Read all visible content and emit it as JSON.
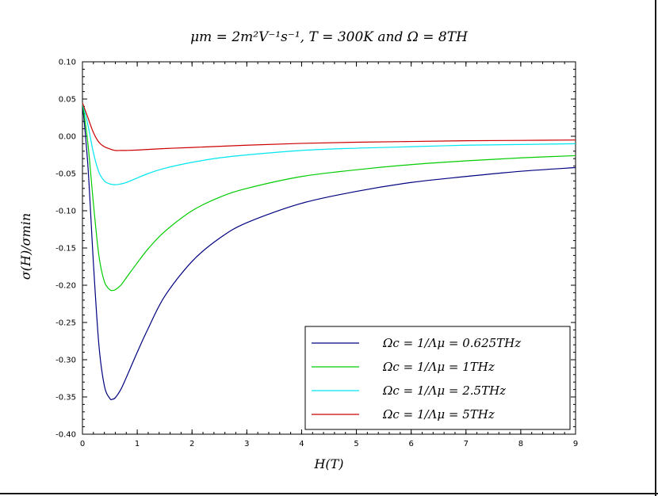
{
  "chart_data": {
    "type": "line",
    "title": "μm = 2m²V⁻¹s⁻¹, T = 300K and Ω = 8TH",
    "xlabel": "H(T)",
    "ylabel": "σ(H)/σmin",
    "xlim": [
      0,
      9
    ],
    "ylim": [
      -0.4,
      0.1
    ],
    "x_ticks": [
      "0",
      "1",
      "2",
      "3",
      "4",
      "5",
      "6",
      "7",
      "8",
      "9"
    ],
    "y_ticks": [
      "0.10",
      "0.05",
      "0.00",
      "-0.05",
      "-0.10",
      "-0.15",
      "-0.20",
      "-0.25",
      "-0.30",
      "-0.35",
      "-0.40"
    ],
    "grid": false,
    "legend_position": "bottom-right",
    "series": [
      {
        "name": "Ωc = 1/Λμ = 0.625THz",
        "color": "#000080",
        "x": [
          0,
          0.1,
          0.2,
          0.3,
          0.4,
          0.5,
          0.55,
          0.6,
          0.7,
          0.8,
          1.0,
          1.2,
          1.5,
          2.0,
          2.5,
          3.0,
          4.0,
          5.0,
          6.0,
          7.0,
          8.0,
          9.0
        ],
        "y": [
          0.045,
          -0.04,
          -0.17,
          -0.28,
          -0.335,
          -0.352,
          -0.353,
          -0.351,
          -0.34,
          -0.324,
          -0.29,
          -0.258,
          -0.215,
          -0.168,
          -0.137,
          -0.116,
          -0.09,
          -0.074,
          -0.062,
          -0.054,
          -0.047,
          -0.042
        ]
      },
      {
        "name": "Ωc = 1/Λμ = 1THz",
        "color": "#00cc00",
        "x": [
          0,
          0.1,
          0.2,
          0.3,
          0.4,
          0.5,
          0.55,
          0.6,
          0.7,
          0.8,
          1.0,
          1.2,
          1.5,
          2.0,
          2.5,
          3.0,
          4.0,
          5.0,
          6.0,
          7.0,
          8.0,
          9.0
        ],
        "y": [
          0.045,
          -0.01,
          -0.09,
          -0.16,
          -0.195,
          -0.206,
          -0.207,
          -0.206,
          -0.2,
          -0.19,
          -0.17,
          -0.151,
          -0.128,
          -0.1,
          -0.082,
          -0.07,
          -0.054,
          -0.045,
          -0.038,
          -0.033,
          -0.029,
          -0.026
        ]
      },
      {
        "name": "Ωc = 1/Λμ = 2.5THz",
        "color": "#00e5ee",
        "x": [
          0,
          0.1,
          0.2,
          0.3,
          0.4,
          0.5,
          0.6,
          0.7,
          0.8,
          1.0,
          1.2,
          1.5,
          2.0,
          2.5,
          3.0,
          4.0,
          5.0,
          6.0,
          7.0,
          8.0,
          9.0
        ],
        "y": [
          0.045,
          0.015,
          -0.022,
          -0.048,
          -0.06,
          -0.064,
          -0.065,
          -0.064,
          -0.062,
          -0.056,
          -0.05,
          -0.043,
          -0.035,
          -0.029,
          -0.025,
          -0.019,
          -0.016,
          -0.014,
          -0.012,
          -0.011,
          -0.01
        ]
      },
      {
        "name": "Ωc = 1/Λμ = 5THz",
        "color": "#cc0000",
        "x": [
          0,
          0.1,
          0.2,
          0.3,
          0.4,
          0.5,
          0.6,
          0.7,
          0.8,
          1.0,
          1.5,
          2.0,
          3.0,
          4.0,
          5.0,
          6.0,
          7.0,
          8.0,
          9.0
        ],
        "y": [
          0.045,
          0.025,
          0.005,
          -0.008,
          -0.014,
          -0.017,
          -0.019,
          -0.019,
          -0.019,
          -0.0185,
          -0.0165,
          -0.015,
          -0.012,
          -0.0095,
          -0.008,
          -0.007,
          -0.006,
          -0.0055,
          -0.005
        ]
      }
    ]
  }
}
